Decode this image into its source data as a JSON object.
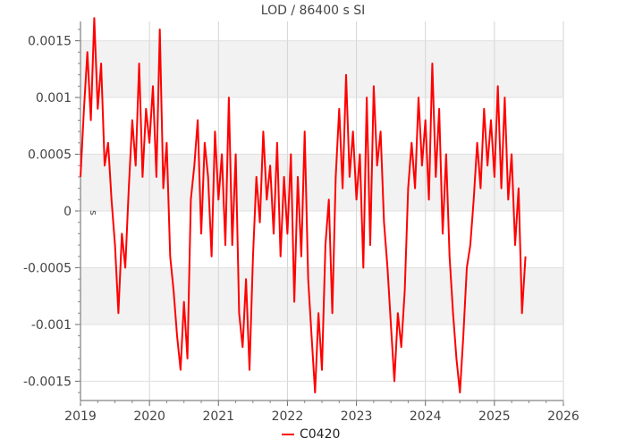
{
  "chart_data": {
    "type": "line",
    "title": "LOD / 86400 s SI",
    "xlabel": "",
    "ylabel": "s",
    "x_ticks": [
      "2019",
      "2020",
      "2021",
      "2022",
      "2023",
      "2024",
      "2025",
      "2026"
    ],
    "y_ticks": [
      "0.0015",
      "0.001",
      "0.0005",
      "0",
      "-0.0005",
      "-0.001",
      "-0.0015"
    ],
    "xlim": [
      2019.0,
      2026.0
    ],
    "ylim": [
      -0.00167,
      0.00167
    ],
    "grid": true,
    "legend_position": "bottom-center",
    "series": [
      {
        "name": "C0420",
        "color": "#ff0000",
        "x": [
          2019.0,
          2019.05,
          2019.1,
          2019.15,
          2019.2,
          2019.25,
          2019.3,
          2019.35,
          2019.4,
          2019.45,
          2019.5,
          2019.55,
          2019.6,
          2019.65,
          2019.7,
          2019.75,
          2019.8,
          2019.85,
          2019.9,
          2019.95,
          2020.0,
          2020.05,
          2020.1,
          2020.15,
          2020.2,
          2020.25,
          2020.3,
          2020.35,
          2020.4,
          2020.45,
          2020.5,
          2020.55,
          2020.6,
          2020.65,
          2020.7,
          2020.75,
          2020.8,
          2020.85,
          2020.9,
          2020.95,
          2021.0,
          2021.05,
          2021.1,
          2021.15,
          2021.2,
          2021.25,
          2021.3,
          2021.35,
          2021.4,
          2021.45,
          2021.5,
          2021.55,
          2021.6,
          2021.65,
          2021.7,
          2021.75,
          2021.8,
          2021.85,
          2021.9,
          2021.95,
          2022.0,
          2022.05,
          2022.1,
          2022.15,
          2022.2,
          2022.25,
          2022.3,
          2022.35,
          2022.4,
          2022.45,
          2022.5,
          2022.55,
          2022.6,
          2022.65,
          2022.7,
          2022.75,
          2022.8,
          2022.85,
          2022.9,
          2022.95,
          2023.0,
          2023.05,
          2023.1,
          2023.15,
          2023.2,
          2023.25,
          2023.3,
          2023.35,
          2023.4,
          2023.45,
          2023.5,
          2023.55,
          2023.6,
          2023.65,
          2023.7,
          2023.75,
          2023.8,
          2023.85,
          2023.9,
          2023.95,
          2024.0,
          2024.05,
          2024.1,
          2024.15,
          2024.2,
          2024.25,
          2024.3,
          2024.35,
          2024.4,
          2024.45,
          2024.5,
          2024.55,
          2024.6,
          2024.65,
          2024.7,
          2024.75,
          2024.8,
          2024.85,
          2024.9,
          2024.95,
          2025.0,
          2025.05,
          2025.1,
          2025.15,
          2025.2,
          2025.25,
          2025.3,
          2025.35,
          2025.4,
          2025.45
        ],
        "y": [
          0.0003,
          0.0009,
          0.0014,
          0.0008,
          0.0017,
          0.0009,
          0.0013,
          0.0004,
          0.0006,
          0.0001,
          -0.0003,
          -0.0009,
          -0.0002,
          -0.0005,
          0.0002,
          0.0008,
          0.0004,
          0.0013,
          0.0003,
          0.0009,
          0.0006,
          0.0011,
          0.0003,
          0.0016,
          0.0002,
          0.0006,
          -0.0004,
          -0.0007,
          -0.0011,
          -0.0014,
          -0.0008,
          -0.0013,
          0.0001,
          0.0004,
          0.0008,
          -0.0002,
          0.0006,
          0.0003,
          -0.0004,
          0.0007,
          0.0001,
          0.0005,
          -0.0003,
          0.001,
          -0.0003,
          0.0005,
          -0.0009,
          -0.0012,
          -0.0006,
          -0.0014,
          -0.0004,
          0.0003,
          -0.0001,
          0.0007,
          0.0001,
          0.0004,
          -0.0002,
          0.0006,
          -0.0004,
          0.0003,
          -0.0002,
          0.0005,
          -0.0008,
          0.0003,
          -0.0004,
          0.0007,
          -0.0006,
          -0.0011,
          -0.0016,
          -0.0009,
          -0.0014,
          -0.0003,
          0.0001,
          -0.0009,
          0.0003,
          0.0009,
          0.0002,
          0.0012,
          0.0003,
          0.0007,
          0.0001,
          0.0005,
          -0.0005,
          0.001,
          -0.0003,
          0.0011,
          0.0004,
          0.0007,
          -0.0001,
          -0.0005,
          -0.001,
          -0.0015,
          -0.0009,
          -0.0012,
          -0.0007,
          0.0002,
          0.0006,
          0.0002,
          0.001,
          0.0004,
          0.0008,
          0.0001,
          0.0013,
          0.0003,
          0.0009,
          -0.0002,
          0.0005,
          -0.0004,
          -0.0009,
          -0.0013,
          -0.0016,
          -0.0011,
          -0.0005,
          -0.0003,
          0.0001,
          0.0006,
          0.0002,
          0.0009,
          0.0004,
          0.0008,
          0.0003,
          0.0011,
          0.0002,
          0.001,
          0.0001,
          0.0005,
          -0.0003,
          0.0002,
          -0.0009,
          -0.0004
        ]
      }
    ]
  }
}
